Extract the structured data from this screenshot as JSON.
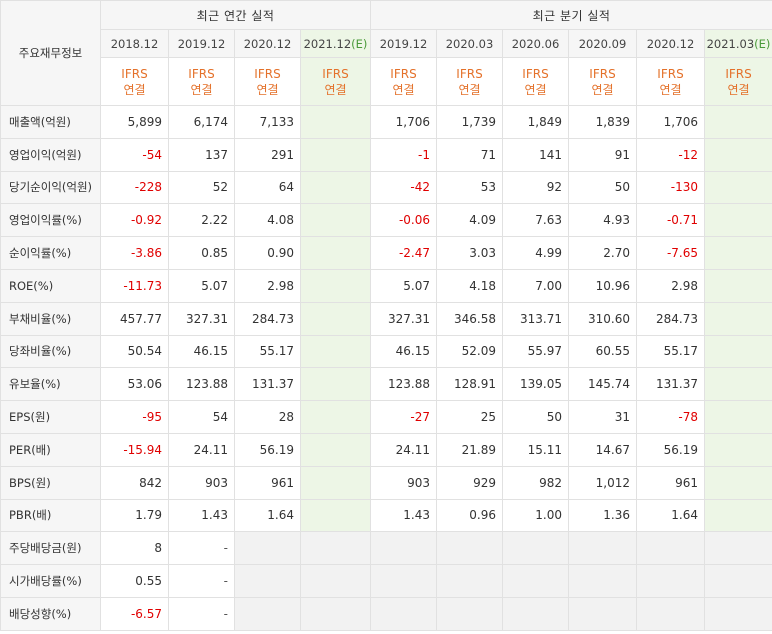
{
  "table": {
    "corner_label": "주요재무정보",
    "groups": {
      "annual": "최근 연간 실적",
      "quarterly": "최근 분기 실적"
    },
    "annual_periods": [
      "2018.12",
      "2019.12",
      "2020.12",
      "2021.12"
    ],
    "quarter_periods": [
      "2019.12",
      "2020.03",
      "2020.06",
      "2020.09",
      "2020.12",
      "2021.03"
    ],
    "estimate_tag": "(E)",
    "ifrs_label": "IFRS",
    "consolidated_label": "연결",
    "rows": [
      {
        "label": "매출액(억원)",
        "annual": [
          "5,899",
          "6,174",
          "7,133",
          ""
        ],
        "quarter": [
          "1,706",
          "1,739",
          "1,849",
          "1,839",
          "1,706",
          ""
        ]
      },
      {
        "label": "영업이익(억원)",
        "annual": [
          "-54",
          "137",
          "291",
          ""
        ],
        "quarter": [
          "-1",
          "71",
          "141",
          "91",
          "-12",
          ""
        ]
      },
      {
        "label": "당기순이익(억원)",
        "annual": [
          "-228",
          "52",
          "64",
          ""
        ],
        "quarter": [
          "-42",
          "53",
          "92",
          "50",
          "-130",
          ""
        ]
      },
      {
        "label": "영업이익률(%)",
        "annual": [
          "-0.92",
          "2.22",
          "4.08",
          ""
        ],
        "quarter": [
          "-0.06",
          "4.09",
          "7.63",
          "4.93",
          "-0.71",
          ""
        ]
      },
      {
        "label": "순이익률(%)",
        "annual": [
          "-3.86",
          "0.85",
          "0.90",
          ""
        ],
        "quarter": [
          "-2.47",
          "3.03",
          "4.99",
          "2.70",
          "-7.65",
          ""
        ]
      },
      {
        "label": "ROE(%)",
        "annual": [
          "-11.73",
          "5.07",
          "2.98",
          ""
        ],
        "quarter": [
          "5.07",
          "4.18",
          "7.00",
          "10.96",
          "2.98",
          ""
        ]
      },
      {
        "label": "부채비율(%)",
        "annual": [
          "457.77",
          "327.31",
          "284.73",
          ""
        ],
        "quarter": [
          "327.31",
          "346.58",
          "313.71",
          "310.60",
          "284.73",
          ""
        ]
      },
      {
        "label": "당좌비율(%)",
        "annual": [
          "50.54",
          "46.15",
          "55.17",
          ""
        ],
        "quarter": [
          "46.15",
          "52.09",
          "55.97",
          "60.55",
          "55.17",
          ""
        ]
      },
      {
        "label": "유보율(%)",
        "annual": [
          "53.06",
          "123.88",
          "131.37",
          ""
        ],
        "quarter": [
          "123.88",
          "128.91",
          "139.05",
          "145.74",
          "131.37",
          ""
        ]
      },
      {
        "label": "EPS(원)",
        "annual": [
          "-95",
          "54",
          "28",
          ""
        ],
        "quarter": [
          "-27",
          "25",
          "50",
          "31",
          "-78",
          ""
        ]
      },
      {
        "label": "PER(배)",
        "annual": [
          "-15.94",
          "24.11",
          "56.19",
          ""
        ],
        "quarter": [
          "24.11",
          "21.89",
          "15.11",
          "14.67",
          "56.19",
          ""
        ]
      },
      {
        "label": "BPS(원)",
        "annual": [
          "842",
          "903",
          "961",
          ""
        ],
        "quarter": [
          "903",
          "929",
          "982",
          "1,012",
          "961",
          ""
        ]
      },
      {
        "label": "PBR(배)",
        "annual": [
          "1.79",
          "1.43",
          "1.64",
          ""
        ],
        "quarter": [
          "1.43",
          "0.96",
          "1.00",
          "1.36",
          "1.64",
          ""
        ]
      },
      {
        "label": "주당배당금(원)",
        "annual": [
          "8",
          "-",
          "",
          ""
        ],
        "quarter": [
          "",
          "",
          "",
          "",
          "",
          ""
        ]
      },
      {
        "label": "시가배당률(%)",
        "annual": [
          "0.55",
          "-",
          "",
          ""
        ],
        "quarter": [
          "",
          "",
          "",
          "",
          "",
          ""
        ]
      },
      {
        "label": "배당성향(%)",
        "annual": [
          "-6.57",
          "-",
          "",
          ""
        ],
        "quarter": [
          "",
          "",
          "",
          "",
          "",
          ""
        ]
      }
    ]
  }
}
